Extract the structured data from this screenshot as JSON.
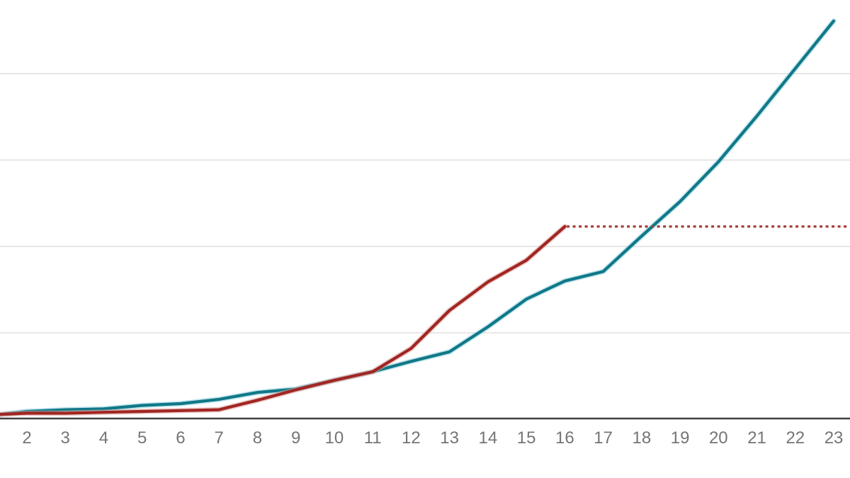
{
  "chart_data": {
    "type": "line",
    "title": "",
    "xlabel": "",
    "ylabel": "",
    "legend": "none",
    "grid": true,
    "background_color": "#ffffff",
    "gridline_color": "#e7e7e7",
    "axis_line_color": "#424242",
    "tick_label_color": "#757575",
    "x_tick_labels": [
      "2",
      "3",
      "4",
      "5",
      "6",
      "7",
      "8",
      "9",
      "10",
      "11",
      "12",
      "13",
      "14",
      "15",
      "16",
      "17",
      "18",
      "19",
      "20",
      "21",
      "22",
      "23"
    ],
    "x_tick_values": [
      2,
      3,
      4,
      5,
      6,
      7,
      8,
      9,
      10,
      11,
      12,
      13,
      14,
      15,
      16,
      17,
      18,
      19,
      20,
      21,
      22,
      23
    ],
    "y_gridline_values": [
      1,
      2,
      3,
      4
    ],
    "ylim": [
      0,
      4.85
    ],
    "xlim": [
      1.3,
      23.42
    ],
    "series": [
      {
        "name": "teal-series",
        "color": "#107888",
        "halo_color": "#8fd2de",
        "style": "solid",
        "x": [
          1,
          2,
          3,
          4,
          5,
          6,
          7,
          8,
          9,
          10,
          11,
          12,
          13,
          14,
          15,
          16,
          17,
          18,
          19,
          20,
          21,
          22,
          23
        ],
        "values": [
          0.04,
          0.09,
          0.11,
          0.12,
          0.16,
          0.18,
          0.23,
          0.31,
          0.35,
          0.45,
          0.55,
          0.67,
          0.78,
          1.07,
          1.39,
          1.6,
          1.71,
          2.12,
          2.52,
          2.98,
          3.51,
          4.06,
          4.61
        ]
      },
      {
        "name": "red-series",
        "color": "#a12622",
        "halo_color": "#dba09c",
        "style": "solid",
        "x": [
          1,
          2,
          3,
          4,
          5,
          6,
          7,
          8,
          9,
          10,
          11,
          12,
          13,
          14,
          15,
          16
        ],
        "values": [
          0.05,
          0.07,
          0.07,
          0.08,
          0.09,
          0.1,
          0.11,
          0.22,
          0.34,
          0.45,
          0.55,
          0.82,
          1.26,
          1.59,
          1.84,
          2.23
        ]
      },
      {
        "name": "red-projection",
        "color": "#a33b36",
        "halo_color": null,
        "style": "dotted",
        "x": [
          16.05,
          23.35
        ],
        "values": [
          2.23,
          2.23
        ]
      }
    ]
  }
}
